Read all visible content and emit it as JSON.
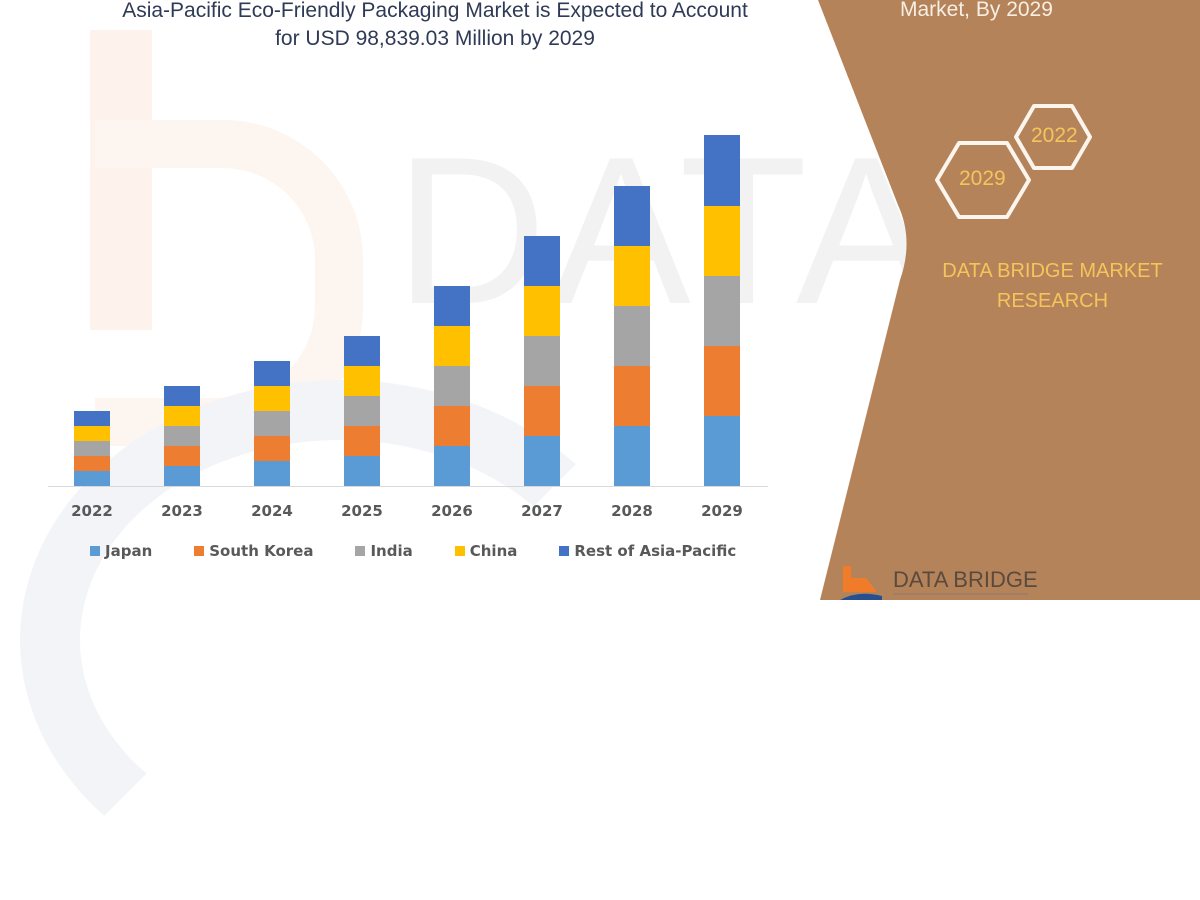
{
  "title": {
    "line1": "Asia-Pacific Eco-Friendly Packaging Market is Expected to Account",
    "line2": "for USD 98,839.03 Million by 2029"
  },
  "side_panel": {
    "subtitle": "Market, By 2029",
    "hex_years": [
      "2029",
      "2022"
    ],
    "brand_line1": "DATA BRIDGE MARKET",
    "brand_line2": "RESEARCH",
    "logo_text": "DATA BRIDGE",
    "background_color": "#b5835a",
    "accent_color": "#f5c45a"
  },
  "watermark": {
    "text": "DATA BRIDGE"
  },
  "chart_data": {
    "type": "bar",
    "stacked": true,
    "title": "Asia-Pacific Eco-Friendly Packaging Market is Expected to Account for USD 98,839.03 Million by 2029",
    "xlabel": "",
    "ylabel": "",
    "y_axis_visible": false,
    "grid": false,
    "legend_position": "bottom",
    "units_note": "Relative bar heights (no y-axis shown); estimated in pixel units",
    "categories": [
      "2022",
      "2023",
      "2024",
      "2025",
      "2026",
      "2027",
      "2028",
      "2029"
    ],
    "series": [
      {
        "name": "Japan",
        "color": "#5b9bd5",
        "values": [
          15,
          20,
          25,
          30,
          40,
          50,
          60,
          70
        ]
      },
      {
        "name": "South Korea",
        "color": "#ed7d31",
        "values": [
          15,
          20,
          25,
          30,
          40,
          50,
          60,
          70
        ]
      },
      {
        "name": "India",
        "color": "#a5a5a5",
        "values": [
          15,
          20,
          25,
          30,
          40,
          50,
          60,
          70
        ]
      },
      {
        "name": "China",
        "color": "#ffc000",
        "values": [
          15,
          20,
          25,
          30,
          40,
          50,
          60,
          70
        ]
      },
      {
        "name": "Rest of Asia-Pacific",
        "color": "#4472c4",
        "values": [
          15,
          20,
          25,
          30,
          40,
          50,
          60,
          71
        ]
      }
    ],
    "totals": [
      75,
      100,
      125,
      150,
      200,
      250,
      300,
      351
    ]
  }
}
